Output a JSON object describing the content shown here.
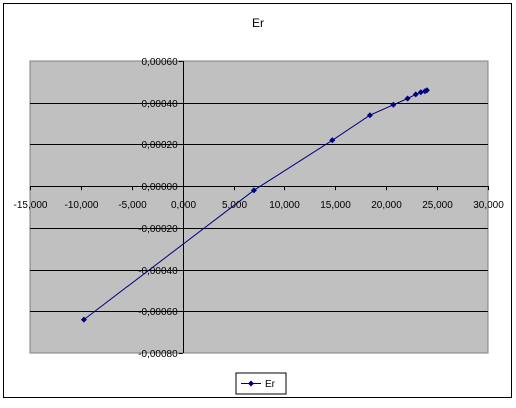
{
  "chart_data": {
    "type": "scatter",
    "title": "Er",
    "xlabel": "",
    "ylabel": "",
    "xlim": [
      -15000,
      30000
    ],
    "ylim": [
      -0.0008,
      0.0006
    ],
    "x_ticks": [
      "-15,000",
      "-10,000",
      "-5,000",
      "0,000",
      "5,000",
      "10,000",
      "15,000",
      "20,000",
      "25,000",
      "30,000"
    ],
    "y_ticks": [
      "0,00060",
      "0,00040",
      "0,00020",
      "0,00000",
      "-0,00020",
      "-0,00040",
      "-0,00060",
      "-0,00080"
    ],
    "grid": "horizontal",
    "legend_position": "bottom",
    "series": [
      {
        "name": "Er",
        "color": "#000080",
        "marker": "diamond",
        "x": [
          -9700,
          7000,
          14700,
          18400,
          20700,
          22100,
          22900,
          23400,
          23800,
          24000
        ],
        "y": [
          -0.00064,
          -2e-05,
          0.00022,
          0.00034,
          0.00039,
          0.00042,
          0.00044,
          0.00045,
          0.000455,
          0.00046
        ]
      }
    ]
  }
}
